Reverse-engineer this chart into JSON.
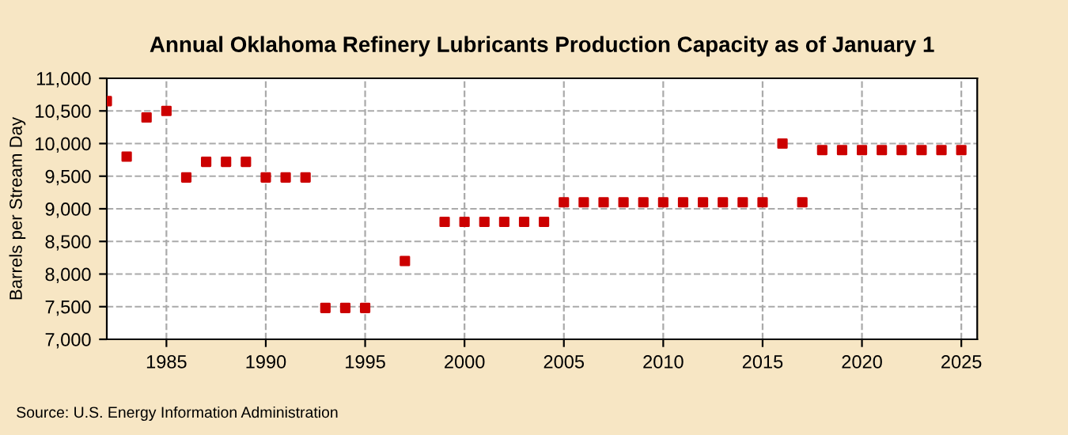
{
  "chart_data": {
    "type": "scatter",
    "title": "Annual Oklahoma Refinery Lubricants Production Capacity as of January 1",
    "ylabel": "Barrels per Stream Day",
    "x": [
      1982,
      1983,
      1984,
      1985,
      1986,
      1987,
      1988,
      1989,
      1990,
      1991,
      1992,
      1993,
      1994,
      1995,
      1997,
      1999,
      2000,
      2001,
      2002,
      2003,
      2004,
      2005,
      2006,
      2007,
      2008,
      2009,
      2010,
      2011,
      2012,
      2013,
      2014,
      2015,
      2016,
      2017,
      2018,
      2019,
      2020,
      2021,
      2022,
      2023,
      2024,
      2025
    ],
    "series": [
      {
        "color": "#cc0000",
        "values": [
          10650,
          9800,
          10400,
          10500,
          9480,
          9720,
          9720,
          9720,
          9480,
          9480,
          9480,
          7480,
          7480,
          7480,
          8200,
          8800,
          8800,
          8800,
          8800,
          8800,
          8800,
          9100,
          9100,
          9100,
          9100,
          9100,
          9100,
          9100,
          9100,
          9100,
          9100,
          9100,
          10000,
          9100,
          9900,
          9900,
          9900,
          9900,
          9900,
          9900,
          9900,
          9900
        ]
      }
    ],
    "xlim": [
      1982,
      2025.8
    ],
    "xticks": [
      1985,
      1990,
      1995,
      2000,
      2005,
      2010,
      2015,
      2020,
      2025
    ],
    "ylim": [
      7000,
      11000
    ],
    "yticks": [
      {
        "value": 7000,
        "label": "7,000"
      },
      {
        "value": 7500,
        "label": "7,500"
      },
      {
        "value": 8000,
        "label": "8,000"
      },
      {
        "value": 8500,
        "label": "8,500"
      },
      {
        "value": 9000,
        "label": "9,000"
      },
      {
        "value": 9500,
        "label": "9,500"
      },
      {
        "value": 10000,
        "label": "10,000"
      },
      {
        "value": 10500,
        "label": "10,500"
      },
      {
        "value": 11000,
        "label": "11,000"
      }
    ],
    "grid": true,
    "marker": "square",
    "legend": false,
    "annotations": [
      "Source: U.S. Energy Information Administration"
    ]
  }
}
